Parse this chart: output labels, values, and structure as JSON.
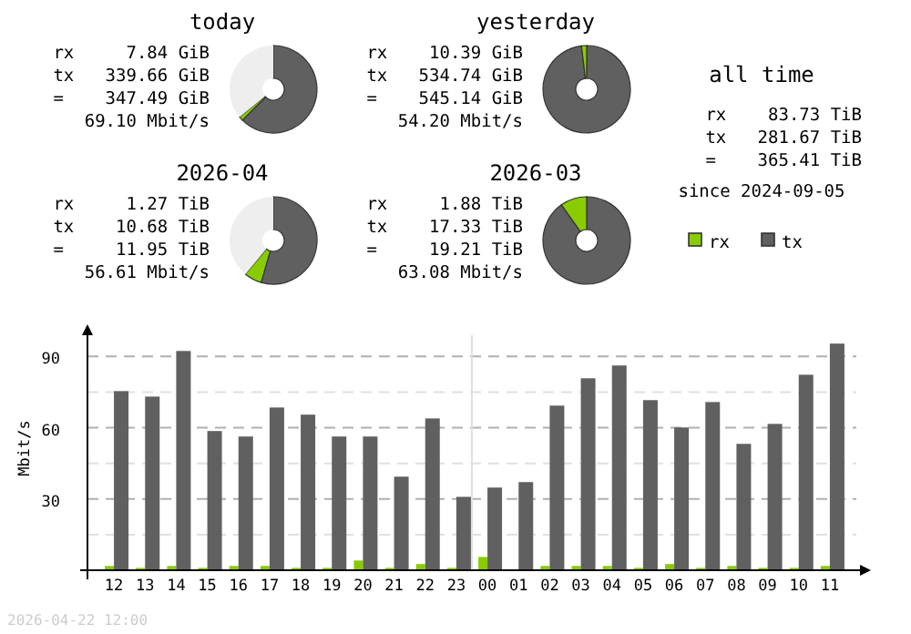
{
  "chart_data": [
    {
      "type": "donut",
      "title": "today",
      "categories": [
        null,
        null,
        null
      ],
      "values": [
        1.5,
        62.5,
        36
      ],
      "colors": [
        "#88cc00",
        "#606060",
        "#eeeeee"
      ],
      "annotations": [
        "rx     7.84 GiB",
        "tx   339.66 GiB",
        "=    347.49 GiB",
        "69.10 Mbit/s"
      ]
    },
    {
      "type": "donut",
      "title": "yesterday",
      "categories": [
        null,
        null
      ],
      "values": [
        1.9,
        98.1
      ],
      "colors": [
        "#88cc00",
        "#606060"
      ],
      "annotations": [
        "rx    10.39 GiB",
        "tx   534.74 GiB",
        "=    545.14 GiB",
        "54.20 Mbit/s"
      ]
    },
    {
      "type": "donut",
      "title": "2026-04",
      "categories": [
        null,
        null,
        null
      ],
      "values": [
        6.5,
        54.5,
        39
      ],
      "colors": [
        "#88cc00",
        "#606060",
        "#eeeeee"
      ],
      "annotations": [
        "rx     1.27 TiB",
        "tx    10.68 TiB",
        "=     11.95 TiB",
        "56.61 Mbit/s"
      ]
    },
    {
      "type": "donut",
      "title": "2026-03",
      "categories": [
        null,
        null
      ],
      "values": [
        9.8,
        90.2
      ],
      "colors": [
        "#88cc00",
        "#606060"
      ],
      "annotations": [
        "rx     1.88 TiB",
        "tx    17.33 TiB",
        "=     19.21 TiB",
        "63.08 Mbit/s"
      ]
    },
    {
      "type": "other",
      "title": "all time",
      "annotations": [
        "rx    83.73 TiB",
        "tx   281.67 TiB",
        "=    365.41 TiB",
        "since 2024-09-05"
      ]
    },
    {
      "type": "bar",
      "ylabel": "Mbit/s",
      "legend": "top right",
      "grid": "y",
      "categories": [
        "12",
        "13",
        "14",
        "15",
        "16",
        "17",
        "18",
        "19",
        "20",
        "21",
        "22",
        "23",
        "00",
        "01",
        "02",
        "03",
        "04",
        "05",
        "06",
        "07",
        "08",
        "09",
        "10",
        "11"
      ],
      "ylim": [
        0,
        102
      ],
      "yticks": [
        {
          "value": 15,
          "label": null
        },
        30,
        {
          "value": 45,
          "label": null
        },
        60,
        {
          "value": 75,
          "label": null
        },
        90
      ],
      "ref_lines": [
        {
          "axis": "x",
          "value": "00",
          "color": "#e0e0e0"
        }
      ],
      "annotations": [
        "2026-04-22 12:00"
      ],
      "series": [
        {
          "name": "rx",
          "color": "#88cc00",
          "values": [
            1.8,
            1.0,
            1.8,
            1.0,
            1.8,
            1.8,
            1.0,
            1.0,
            4.1,
            1.0,
            2.6,
            1.0,
            5.6,
            0,
            1.8,
            1.8,
            1.8,
            1.0,
            2.6,
            1.0,
            1.8,
            1.0,
            1.0,
            1.8
          ]
        },
        {
          "name": "tx",
          "color": "#606060",
          "values": [
            75.4,
            73.1,
            92.3,
            58.6,
            56.3,
            68.5,
            65.5,
            56.3,
            56.3,
            39.4,
            63.9,
            30.9,
            34.8,
            37.1,
            69.3,
            80.8,
            86.2,
            71.6,
            60.1,
            70.8,
            53.2,
            61.6,
            82.3,
            95.4
          ]
        }
      ]
    }
  ]
}
